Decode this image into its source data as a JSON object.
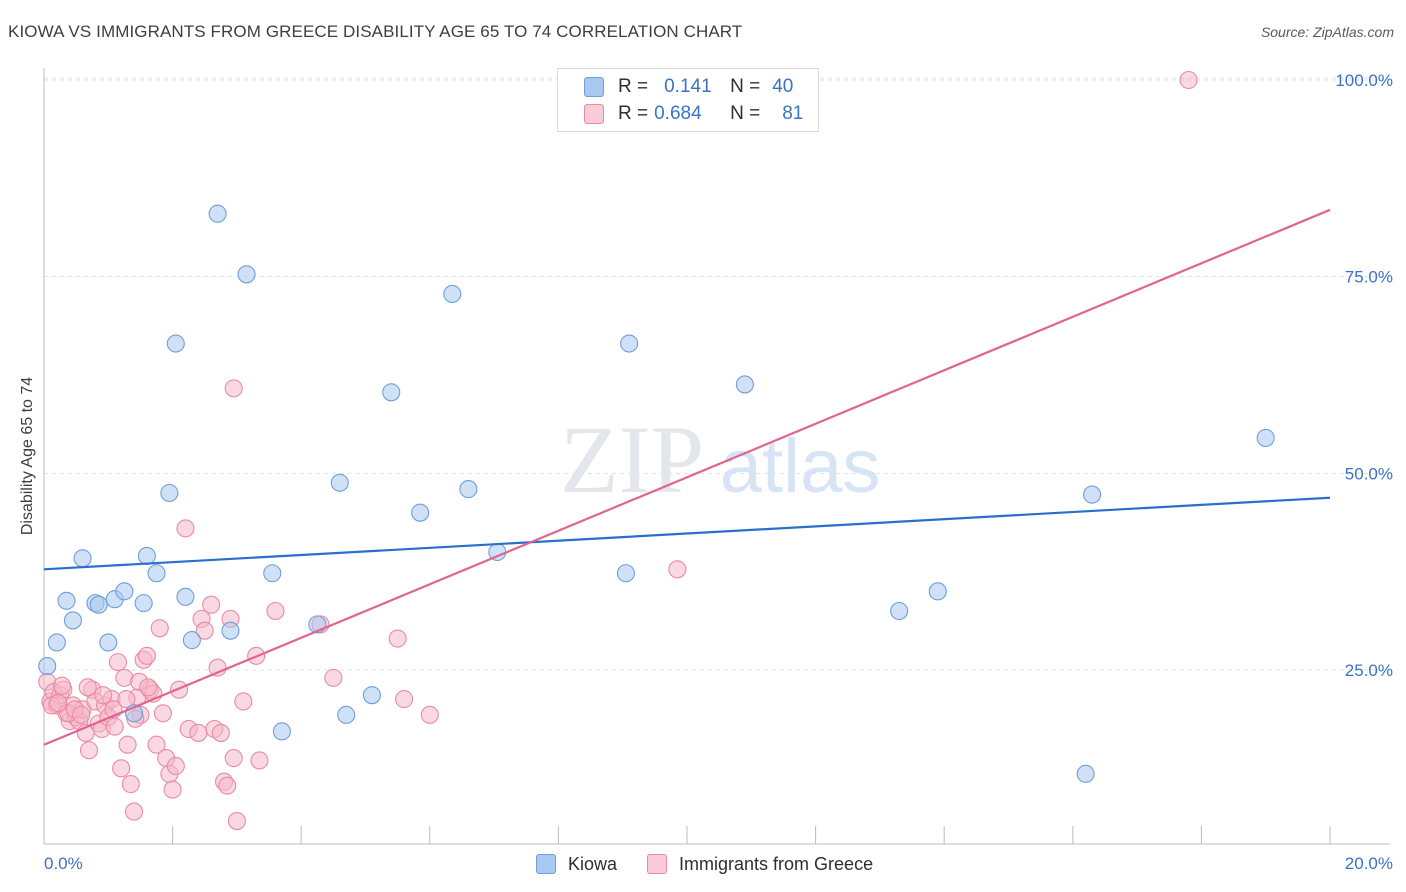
{
  "header": {
    "title": "KIOWA VS IMMIGRANTS FROM GREECE DISABILITY AGE 65 TO 74 CORRELATION CHART",
    "source": "Source: ZipAtlas.com"
  },
  "legend_top": {
    "rows": [
      {
        "r_label": "R =",
        "r_value": "0.141",
        "n_label": "N =",
        "n_value": "40"
      },
      {
        "r_label": "R =",
        "r_value": "0.684",
        "n_label": "N =",
        "n_value": "81"
      }
    ]
  },
  "legend_bottom": [
    "Kiowa",
    "Immigrants from Greece"
  ],
  "watermark": {
    "part1": "ZIP",
    "part2": "atlas"
  },
  "colors": {
    "kiowa_fill": "#a9c8f0",
    "kiowa_stroke": "#6f9fd8",
    "kiowa_line": "#2a6fcc",
    "greece_fill": "#f6b8c9",
    "greece_stroke": "#e98aa6",
    "greece_line": "#e0648f",
    "tick_label": "#3b72c6",
    "grid": "#dde1e6"
  },
  "chart_data": {
    "type": "scatter",
    "title": "KIOWA VS IMMIGRANTS FROM GREECE DISABILITY AGE 65 TO 74 CORRELATION CHART",
    "xlabel": "",
    "ylabel": "Disability Age 65 to 74",
    "xlim": [
      0,
      20
    ],
    "ylim": [
      0,
      105
    ],
    "x_tick_labels": {
      "min": "0.0%",
      "max": "20.0%"
    },
    "y_ticks": [
      {
        "value": 25,
        "label": "25.0%"
      },
      {
        "value": 50,
        "label": "50.0%"
      },
      {
        "value": 75,
        "label": "75.0%"
      },
      {
        "value": 100,
        "label": "100.0%"
      }
    ],
    "grid": true,
    "series": [
      {
        "name": "Kiowa",
        "r": 0.141,
        "n": 40,
        "trend": [
          [
            0,
            37.8
          ],
          [
            20,
            46.9
          ]
        ],
        "points": [
          [
            0.05,
            25.5
          ],
          [
            0.2,
            28.5
          ],
          [
            0.35,
            33.8
          ],
          [
            0.45,
            31.3
          ],
          [
            0.6,
            39.2
          ],
          [
            0.8,
            33.5
          ],
          [
            0.85,
            33.3
          ],
          [
            1.0,
            28.5
          ],
          [
            1.1,
            34.0
          ],
          [
            1.25,
            35.0
          ],
          [
            1.4,
            19.5
          ],
          [
            1.55,
            33.5
          ],
          [
            1.6,
            39.5
          ],
          [
            1.75,
            37.3
          ],
          [
            1.95,
            47.5
          ],
          [
            2.05,
            66.5
          ],
          [
            2.2,
            34.3
          ],
          [
            2.3,
            28.8
          ],
          [
            2.7,
            83.0
          ],
          [
            2.9,
            30.0
          ],
          [
            3.15,
            75.3
          ],
          [
            3.55,
            37.3
          ],
          [
            3.7,
            17.2
          ],
          [
            4.25,
            30.8
          ],
          [
            4.6,
            48.8
          ],
          [
            4.7,
            19.3
          ],
          [
            5.1,
            21.8
          ],
          [
            5.4,
            60.3
          ],
          [
            5.85,
            45.0
          ],
          [
            6.35,
            72.8
          ],
          [
            6.6,
            48.0
          ],
          [
            7.05,
            40.0
          ],
          [
            9.05,
            37.3
          ],
          [
            9.1,
            66.5
          ],
          [
            10.9,
            61.3
          ],
          [
            13.3,
            32.5
          ],
          [
            13.9,
            35.0
          ],
          [
            16.2,
            11.8
          ],
          [
            16.3,
            47.3
          ],
          [
            19.0,
            54.5
          ]
        ]
      },
      {
        "name": "Immigrants from Greece",
        "r": 0.684,
        "n": 81,
        "trend": [
          [
            0,
            15.5
          ],
          [
            20,
            83.5
          ]
        ],
        "points": [
          [
            0.05,
            23.5
          ],
          [
            0.1,
            21.0
          ],
          [
            0.15,
            22.2
          ],
          [
            0.2,
            20.5
          ],
          [
            0.25,
            21.8
          ],
          [
            0.3,
            22.5
          ],
          [
            0.35,
            19.5
          ],
          [
            0.4,
            18.5
          ],
          [
            0.45,
            20.5
          ],
          [
            0.5,
            19.0
          ],
          [
            0.55,
            18.5
          ],
          [
            0.6,
            20.0
          ],
          [
            0.65,
            17.0
          ],
          [
            0.7,
            14.8
          ],
          [
            0.75,
            22.5
          ],
          [
            0.8,
            21.0
          ],
          [
            0.85,
            18.2
          ],
          [
            0.9,
            17.5
          ],
          [
            0.95,
            20.5
          ],
          [
            1.0,
            19.0
          ],
          [
            1.05,
            21.3
          ],
          [
            1.1,
            17.8
          ],
          [
            1.15,
            26.0
          ],
          [
            1.2,
            12.5
          ],
          [
            1.25,
            24.0
          ],
          [
            1.3,
            15.5
          ],
          [
            1.35,
            10.5
          ],
          [
            1.4,
            7.0
          ],
          [
            1.45,
            21.5
          ],
          [
            1.5,
            19.3
          ],
          [
            1.55,
            26.3
          ],
          [
            1.6,
            26.8
          ],
          [
            1.65,
            22.5
          ],
          [
            1.7,
            22.0
          ],
          [
            1.75,
            15.5
          ],
          [
            1.8,
            30.3
          ],
          [
            1.85,
            19.5
          ],
          [
            1.9,
            13.8
          ],
          [
            1.95,
            11.8
          ],
          [
            2.0,
            9.8
          ],
          [
            2.05,
            12.8
          ],
          [
            2.1,
            22.5
          ],
          [
            2.2,
            43.0
          ],
          [
            2.25,
            17.5
          ],
          [
            2.4,
            17.0
          ],
          [
            2.45,
            31.5
          ],
          [
            2.5,
            30.0
          ],
          [
            2.6,
            33.3
          ],
          [
            2.65,
            17.5
          ],
          [
            2.7,
            25.3
          ],
          [
            2.8,
            10.8
          ],
          [
            2.9,
            31.5
          ],
          [
            2.95,
            13.8
          ],
          [
            3.0,
            5.8
          ],
          [
            3.1,
            21.0
          ],
          [
            3.3,
            26.8
          ],
          [
            3.35,
            13.5
          ],
          [
            3.6,
            32.5
          ],
          [
            4.3,
            30.8
          ],
          [
            4.5,
            24.0
          ],
          [
            5.5,
            29.0
          ],
          [
            5.6,
            21.3
          ],
          [
            6.0,
            19.3
          ],
          [
            9.85,
            37.8
          ],
          [
            17.8,
            100.0
          ],
          [
            0.12,
            20.5
          ],
          [
            0.28,
            23.0
          ],
          [
            0.38,
            19.5
          ],
          [
            0.48,
            20.0
          ],
          [
            0.58,
            19.3
          ],
          [
            0.92,
            21.8
          ],
          [
            1.08,
            20.0
          ],
          [
            1.28,
            21.3
          ],
          [
            1.48,
            23.5
          ],
          [
            1.62,
            22.8
          ],
          [
            2.75,
            17.0
          ],
          [
            2.85,
            10.3
          ],
          [
            2.95,
            60.8
          ],
          [
            1.42,
            18.8
          ],
          [
            0.22,
            20.8
          ],
          [
            0.68,
            22.8
          ]
        ]
      }
    ]
  }
}
